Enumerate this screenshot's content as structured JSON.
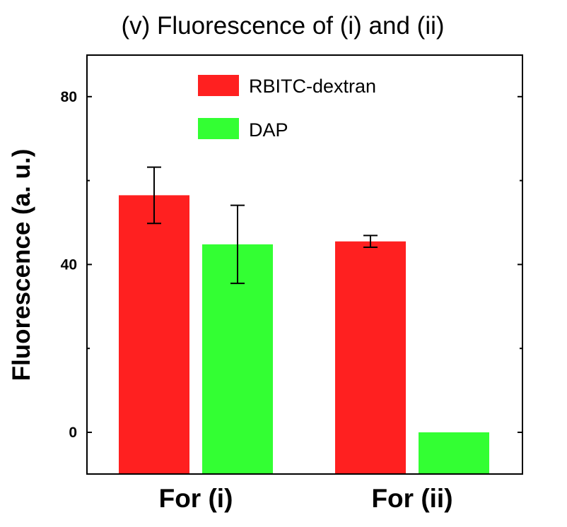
{
  "chart_data": {
    "type": "bar",
    "title": "(v) Fluorescence of (i) and (ii)",
    "xlabel": "",
    "ylabel": "Fluorescence (a. u.)",
    "categories": [
      "For (i)",
      "For (ii)"
    ],
    "series": [
      {
        "name": "RBITC-dextran",
        "color": "#ff2020",
        "values": [
          56.5,
          45.5
        ],
        "errors": [
          6.7,
          1.4
        ]
      },
      {
        "name": "DAP",
        "color": "#33ff33",
        "values": [
          44.8,
          0
        ],
        "errors": [
          9.3,
          0
        ]
      }
    ],
    "yticks": [
      0,
      40,
      80
    ],
    "ytick_labels": [
      "0",
      "40",
      "80"
    ],
    "ylim": [
      -10,
      90
    ],
    "grid": false,
    "legend_position": "top-right"
  }
}
